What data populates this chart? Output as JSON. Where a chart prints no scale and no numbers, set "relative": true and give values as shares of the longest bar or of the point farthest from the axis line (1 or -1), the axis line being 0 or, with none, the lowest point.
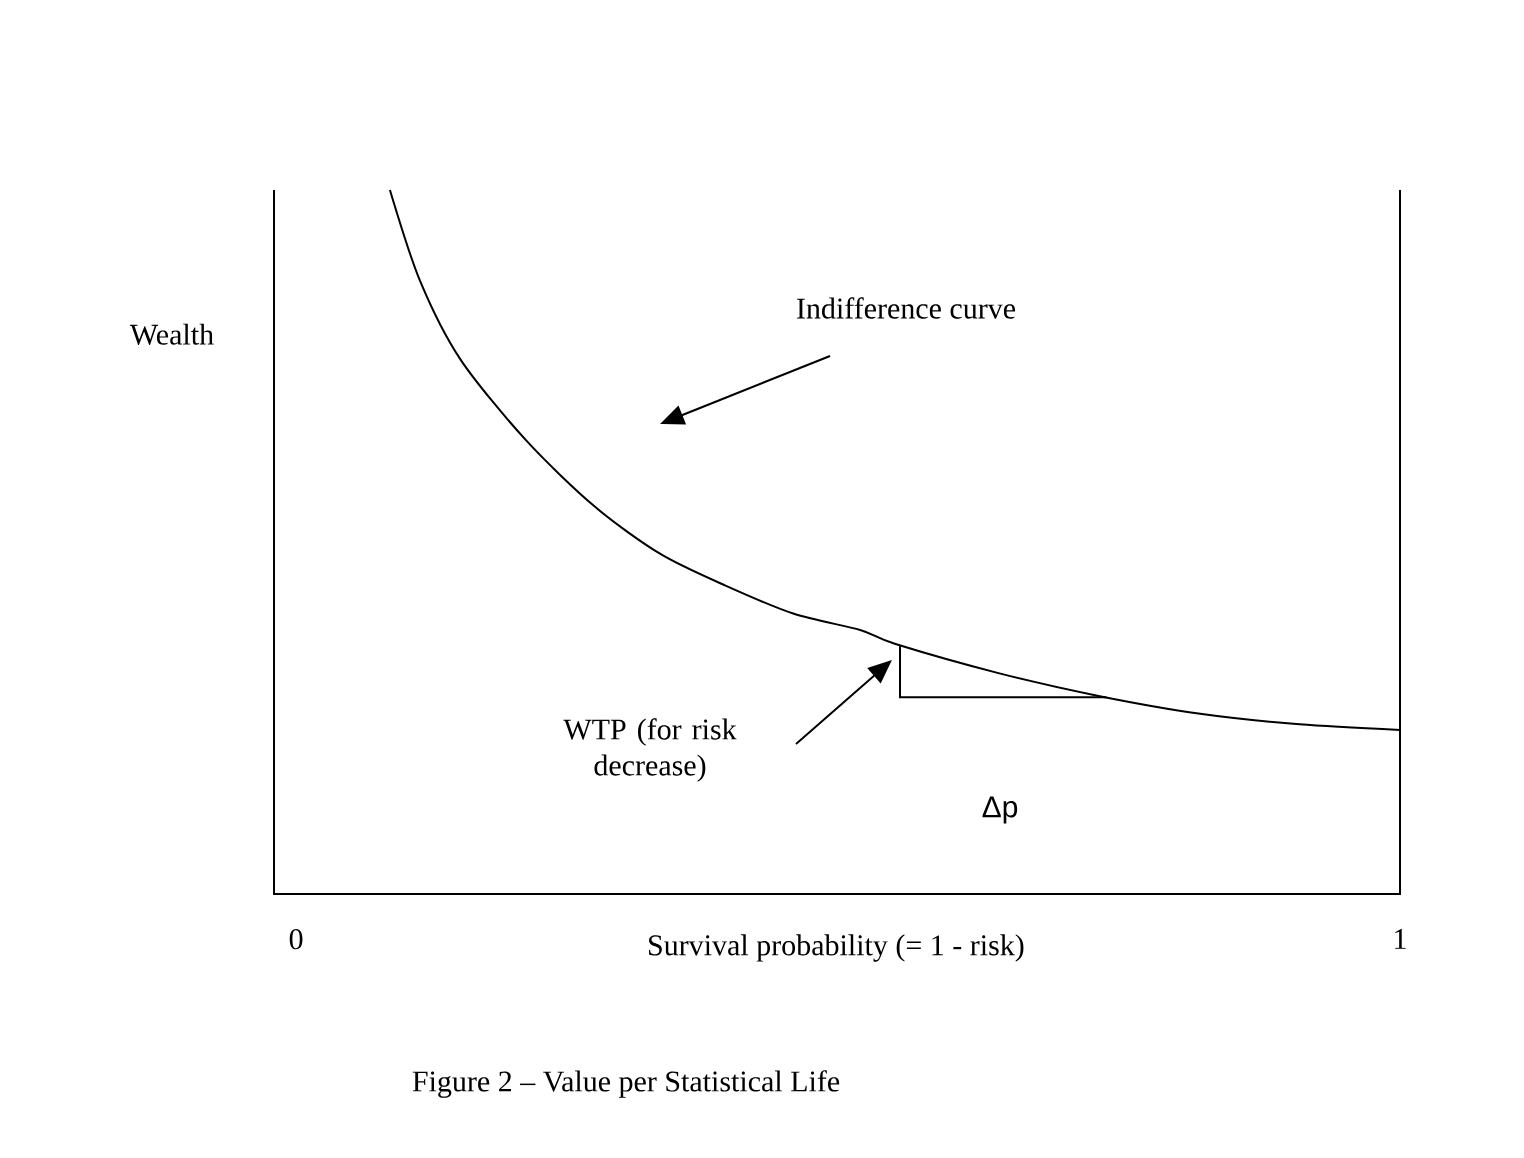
{
  "chart_data": {
    "type": "line",
    "relative": true,
    "color": "#000000",
    "xlabel": "Survival probability (= 1 - risk)",
    "ylabel": "Wealth",
    "xlim": [
      -0.02,
      1
    ],
    "xticks": [
      0,
      1
    ],
    "x": [
      0.085,
      0.112,
      0.149,
      0.208,
      0.27,
      0.33,
      0.389,
      0.451,
      0.511,
      0.543,
      0.638,
      0.728,
      0.819,
      0.909,
      1.0
    ],
    "values": [
      1.0,
      0.872,
      0.759,
      0.645,
      0.551,
      0.483,
      0.438,
      0.398,
      0.375,
      0.355,
      0.313,
      0.281,
      0.256,
      0.241,
      0.233
    ],
    "annotations": [
      "Figure 2 – Value per Statistical Life",
      "Indifference curve",
      "WTP (for risk decrease)",
      "Δp"
    ]
  }
}
